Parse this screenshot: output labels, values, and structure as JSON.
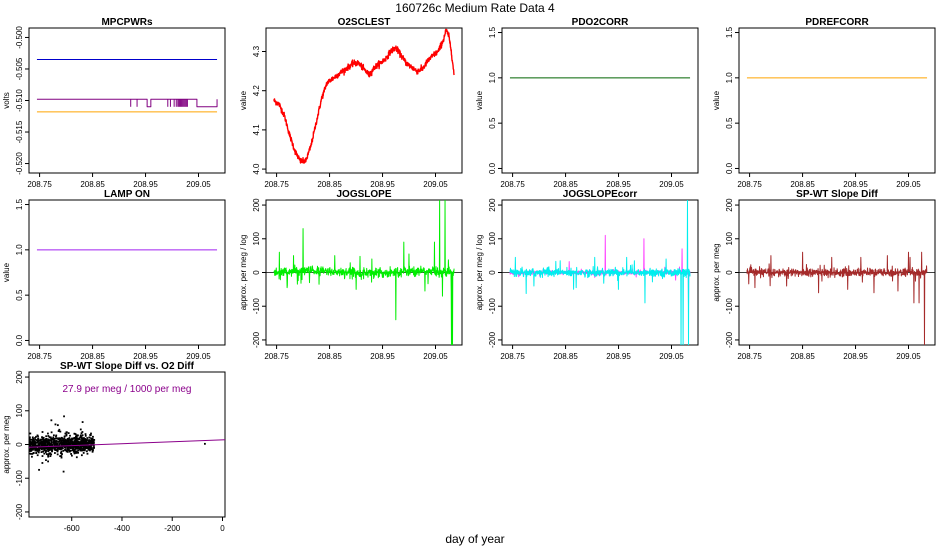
{
  "page": {
    "title": "160726c   Medium Rate Data 4",
    "xlabel": "day of year"
  },
  "chart_data": [
    {
      "id": "mpcpwrs",
      "type": "line",
      "title": "MPCPWRs",
      "ylabel": "volts",
      "xlim": [
        208.73,
        209.1
      ],
      "ylim": [
        -0.5215,
        -0.4985
      ],
      "xticks": [
        208.75,
        208.85,
        208.95,
        209.05
      ],
      "xticklabels": [
        "208.75",
        "208.85",
        "208.95",
        "209.05"
      ],
      "yticks": [
        -0.52,
        -0.515,
        -0.51,
        -0.505,
        -0.5
      ],
      "yticklabels": [
        "-0.520",
        "-0.515",
        "-0.510",
        "-0.505",
        "-0.500"
      ],
      "yticks_rotated": true,
      "series": [
        {
          "color": "#0000cc",
          "x": [
            208.745,
            209.085
          ],
          "y": [
            -0.5035,
            -0.5035
          ]
        },
        {
          "color": "#800080",
          "x": [
            208.745,
            208.953,
            208.953,
            208.96,
            208.96,
            209.047,
            209.047,
            209.085,
            209.085
          ],
          "y": [
            -0.5098,
            -0.5098,
            -0.511,
            -0.511,
            -0.5098,
            -0.5098,
            -0.511,
            -0.511,
            -0.5098
          ],
          "spikes": {
            "low": -0.511,
            "high": -0.5098,
            "x": [
              208.922,
              208.934,
              208.992,
              208.997,
              209.004,
              209.008,
              209.011,
              209.013,
              209.015,
              209.017,
              209.019,
              209.021,
              209.023,
              209.025,
              209.027,
              209.029
            ]
          }
        },
        {
          "color": "#ffa500",
          "x": [
            208.745,
            209.085
          ],
          "y": [
            -0.5118,
            -0.5118
          ]
        }
      ]
    },
    {
      "id": "o2sclest",
      "type": "line",
      "title": "O2SCLEST",
      "ylabel": "value",
      "xlim": [
        208.73,
        209.1
      ],
      "ylim": [
        3.99,
        4.36
      ],
      "xticks": [
        208.75,
        208.85,
        208.95,
        209.05
      ],
      "xticklabels": [
        "208.75",
        "208.85",
        "208.95",
        "209.05"
      ],
      "yticks": [
        4.0,
        4.1,
        4.2,
        4.3
      ],
      "yticklabels": [
        "4.0",
        "4.1",
        "4.2",
        "4.3"
      ],
      "yticks_rotated": true,
      "series": [
        {
          "color": "#ff0000",
          "noise": 0.006,
          "x": [
            208.745,
            208.755,
            208.765,
            208.775,
            208.785,
            208.795,
            208.805,
            208.815,
            208.825,
            208.835,
            208.845,
            208.855,
            208.865,
            208.875,
            208.885,
            208.895,
            208.905,
            208.915,
            208.925,
            208.935,
            208.945,
            208.955,
            208.965,
            208.975,
            208.985,
            208.995,
            209.005,
            209.015,
            209.025,
            209.035,
            209.045,
            209.055,
            209.065,
            209.07,
            209.075,
            209.08,
            209.085
          ],
          "y": [
            4.175,
            4.165,
            4.135,
            4.085,
            4.045,
            4.02,
            4.02,
            4.06,
            4.12,
            4.18,
            4.22,
            4.23,
            4.24,
            4.25,
            4.26,
            4.27,
            4.27,
            4.255,
            4.24,
            4.26,
            4.27,
            4.28,
            4.3,
            4.31,
            4.29,
            4.27,
            4.26,
            4.25,
            4.255,
            4.275,
            4.29,
            4.3,
            4.33,
            4.355,
            4.34,
            4.3,
            4.24
          ]
        }
      ]
    },
    {
      "id": "pdo2corr",
      "type": "line",
      "title": "PDO2CORR",
      "ylabel": "value",
      "xlim": [
        208.73,
        209.1
      ],
      "ylim": [
        -0.05,
        1.55
      ],
      "xticks": [
        208.75,
        208.85,
        208.95,
        209.05
      ],
      "xticklabels": [
        "208.75",
        "208.85",
        "208.95",
        "209.05"
      ],
      "yticks": [
        0.0,
        0.5,
        1.0,
        1.5
      ],
      "yticklabels": [
        "0.0",
        "0.5",
        "1.0",
        "1.5"
      ],
      "yticks_rotated": true,
      "series": [
        {
          "color": "#006400",
          "x": [
            208.745,
            209.085
          ],
          "y": [
            1.0,
            1.0
          ]
        }
      ]
    },
    {
      "id": "pdrefcorr",
      "type": "line",
      "title": "PDREFCORR",
      "ylabel": "value",
      "xlim": [
        208.73,
        209.1
      ],
      "ylim": [
        -0.05,
        1.55
      ],
      "xticks": [
        208.75,
        208.85,
        208.95,
        209.05
      ],
      "xticklabels": [
        "208.75",
        "208.85",
        "208.95",
        "209.05"
      ],
      "yticks": [
        0.0,
        0.5,
        1.0,
        1.5
      ],
      "yticklabels": [
        "0.0",
        "0.5",
        "1.0",
        "1.5"
      ],
      "yticks_rotated": true,
      "series": [
        {
          "color": "#ffa500",
          "x": [
            208.745,
            209.085
          ],
          "y": [
            1.0,
            1.0
          ]
        }
      ]
    },
    {
      "id": "lampon",
      "type": "line",
      "title": "LAMP ON",
      "ylabel": "value",
      "xlim": [
        208.73,
        209.1
      ],
      "ylim": [
        -0.05,
        1.55
      ],
      "xticks": [
        208.75,
        208.85,
        208.95,
        209.05
      ],
      "xticklabels": [
        "208.75",
        "208.85",
        "208.95",
        "209.05"
      ],
      "yticks": [
        0.0,
        0.5,
        1.0,
        1.5
      ],
      "yticklabels": [
        "0.0",
        "0.5",
        "1.0",
        "1.5"
      ],
      "yticks_rotated": true,
      "series": [
        {
          "color": "#a020f0",
          "x": [
            208.745,
            209.085
          ],
          "y": [
            1.0,
            1.0
          ]
        }
      ]
    },
    {
      "id": "jogslope",
      "type": "line",
      "title": "JOGSLOPE",
      "ylabel": "approx. per meg / log",
      "xlim": [
        208.73,
        209.1
      ],
      "ylim": [
        -215,
        215
      ],
      "xticks": [
        208.75,
        208.85,
        208.95,
        209.05
      ],
      "xticklabels": [
        "208.75",
        "208.85",
        "208.95",
        "209.05"
      ],
      "yticks": [
        -200,
        -100,
        0,
        100,
        200
      ],
      "yticklabels": [
        "-200",
        "-100",
        "0",
        "100",
        "200"
      ],
      "yticks_rotated": true,
      "zero_line": true,
      "series": [
        {
          "color": "#00ee00",
          "x_start": 208.745,
          "x_end": 209.085,
          "noise": 7,
          "baseline_x": [
            208.745,
            208.8,
            208.85,
            208.95,
            209.0,
            209.05,
            209.085
          ],
          "baseline_y": [
            0,
            5,
            3,
            -2,
            4,
            2,
            0
          ],
          "spikes_x": [
            208.755,
            208.77,
            208.782,
            208.8,
            208.812,
            208.83,
            208.86,
            208.9,
            208.93,
            208.975,
            208.99,
            209.0,
            209.03,
            209.048,
            209.058,
            209.063,
            209.068,
            209.08,
            209.082
          ],
          "spikes_y": [
            60,
            -45,
            50,
            130,
            -30,
            -35,
            50,
            -50,
            40,
            -140,
            90,
            55,
            -55,
            90,
            220,
            -70,
            220,
            -220,
            -220
          ]
        }
      ]
    },
    {
      "id": "jogslopecorr",
      "type": "line",
      "title": "JOGSLOPEcorr",
      "ylabel": "approx. per meg / log",
      "xlim": [
        208.73,
        209.1
      ],
      "ylim": [
        -215,
        215
      ],
      "xticks": [
        208.75,
        208.85,
        208.95,
        209.05
      ],
      "xticklabels": [
        "208.75",
        "208.85",
        "208.95",
        "209.05"
      ],
      "yticks": [
        -200,
        -100,
        0,
        100,
        200
      ],
      "yticklabels": [
        "-200",
        "-100",
        "0",
        "100",
        "200"
      ],
      "yticks_rotated": true,
      "zero_line": true,
      "series": [
        {
          "color": "#ff44ff",
          "x_start": 208.745,
          "x_end": 209.085,
          "noise": 3,
          "baseline_x": [
            208.745,
            209.085
          ],
          "baseline_y": [
            0,
            0
          ],
          "spikes_x": [
            208.925,
            208.998,
            209.07,
            209.082
          ],
          "spikes_y": [
            110,
            100,
            70,
            -100
          ]
        },
        {
          "color": "#00eeee",
          "x_start": 208.745,
          "x_end": 209.085,
          "noise": 6,
          "baseline_x": [
            208.745,
            209.085
          ],
          "baseline_y": [
            0,
            0
          ],
          "spikes_x": [
            208.755,
            208.79,
            208.84,
            208.87,
            208.905,
            208.95,
            208.98,
            209.0,
            209.04,
            209.068,
            209.072,
            209.08,
            209.082
          ],
          "spikes_y": [
            45,
            -40,
            35,
            -45,
            45,
            -50,
            35,
            -90,
            40,
            -220,
            -220,
            220,
            -220
          ]
        }
      ]
    },
    {
      "id": "spwtslopediff",
      "type": "line",
      "title": "SP-WT Slope Diff",
      "ylabel": "approx. per meg",
      "xlim": [
        208.73,
        209.1
      ],
      "ylim": [
        -215,
        215
      ],
      "xticks": [
        208.75,
        208.85,
        208.95,
        209.05
      ],
      "xticklabels": [
        "208.75",
        "208.85",
        "208.95",
        "209.05"
      ],
      "yticks": [
        -200,
        -100,
        0,
        100,
        200
      ],
      "yticklabels": [
        "-200",
        "-100",
        "0",
        "100",
        "200"
      ],
      "yticks_rotated": true,
      "zero_line": true,
      "series": [
        {
          "color": "#a52a2a",
          "x_start": 208.745,
          "x_end": 209.085,
          "noise": 6,
          "baseline_x": [
            208.745,
            209.085
          ],
          "baseline_y": [
            0,
            0
          ],
          "spikes_x": [
            208.76,
            208.79,
            208.82,
            208.85,
            208.88,
            208.905,
            208.935,
            208.96,
            208.985,
            209.01,
            209.03,
            209.05,
            209.06,
            209.07,
            209.075,
            209.08
          ],
          "spikes_y": [
            -45,
            50,
            -40,
            60,
            -60,
            45,
            -50,
            45,
            -60,
            50,
            -55,
            60,
            -90,
            -90,
            60,
            -220
          ]
        }
      ]
    },
    {
      "id": "scatter",
      "type": "scatter",
      "title": "SP-WT Slope Diff vs. O2 Diff",
      "ylabel": "approx. per meg",
      "annotation": "27.9 per meg / 1000 per meg",
      "annotation_color": "#8b008b",
      "xlim": [
        -770,
        10
      ],
      "ylim": [
        -215,
        215
      ],
      "xticks": [
        -600,
        -400,
        -200,
        0
      ],
      "xticklabels": [
        "-600",
        "-400",
        "-200",
        "0"
      ],
      "yticks": [
        -200,
        -100,
        0,
        100,
        200
      ],
      "yticklabels": [
        "-200",
        "-100",
        "0",
        "100",
        "200"
      ],
      "yticks_rotated": true,
      "cluster": {
        "x_range": [
          -770,
          -510
        ],
        "y_sd": 12,
        "count": 900,
        "outliers": 60,
        "outlier_y_sd": 30
      },
      "extra_points": [
        {
          "x": -70,
          "y": 2
        }
      ],
      "fit_line": {
        "color": "#8b008b",
        "x": [
          -770,
          10
        ],
        "y": [
          -8,
          14
        ]
      }
    }
  ]
}
